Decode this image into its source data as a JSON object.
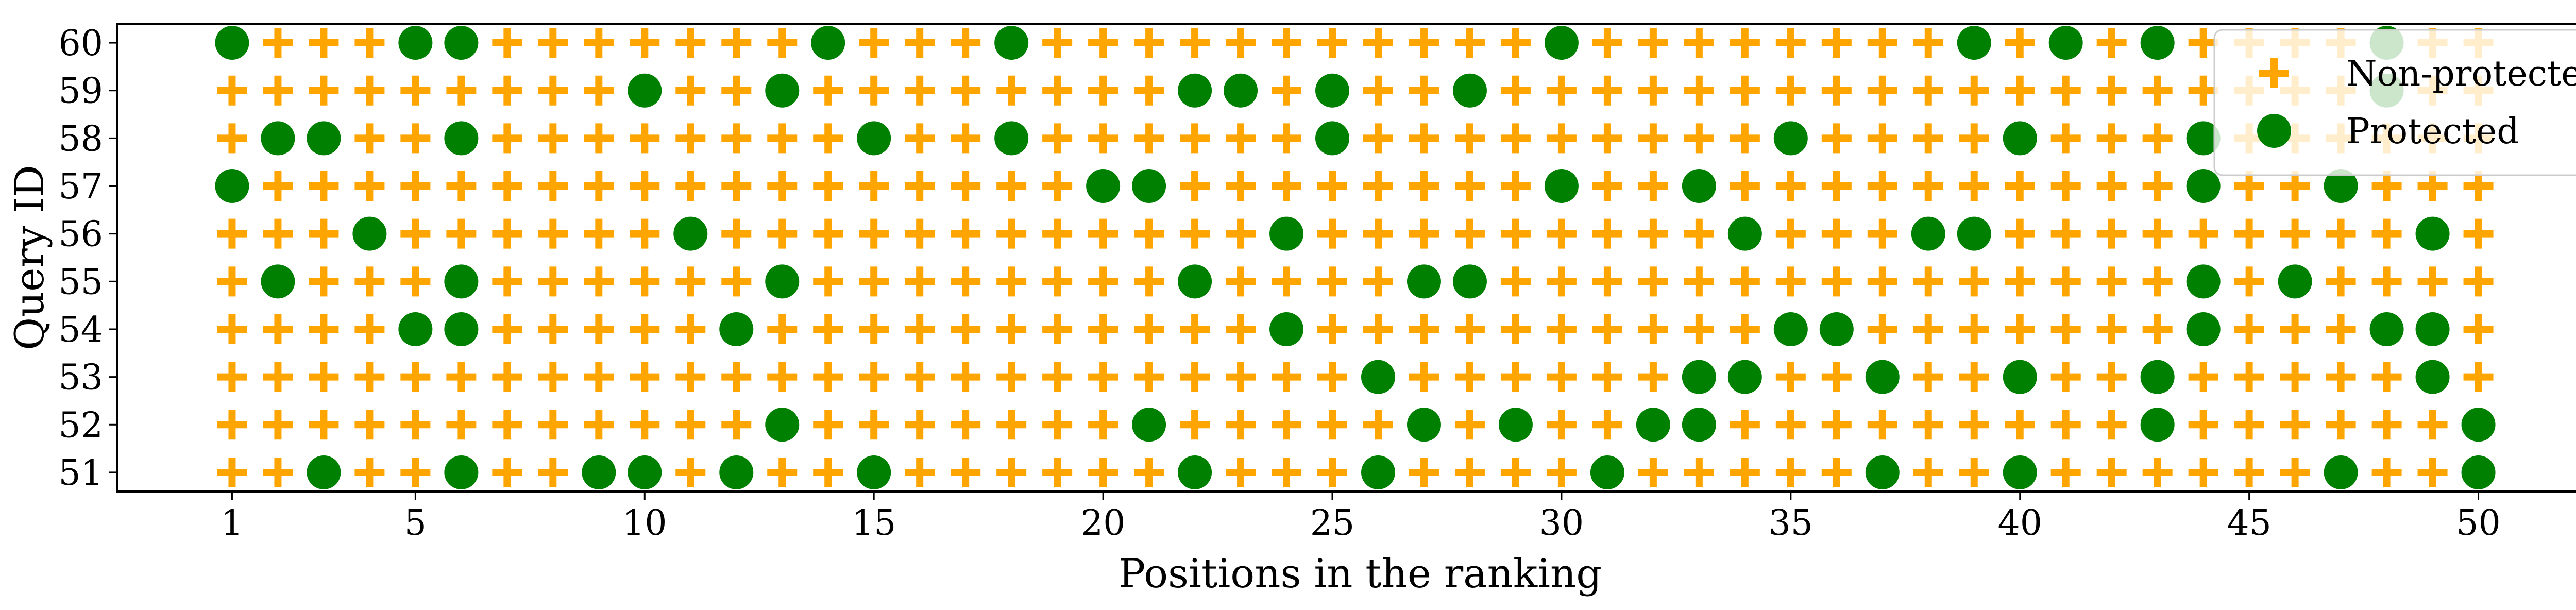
{
  "chart_data": {
    "type": "scatter",
    "xlabel": "Positions in the ranking",
    "ylabel": "Query ID",
    "x_ticks": [
      1,
      5,
      10,
      15,
      20,
      25,
      30,
      35,
      40,
      45,
      50
    ],
    "y_ticks": [
      51,
      52,
      53,
      54,
      55,
      56,
      57,
      58,
      59,
      60
    ],
    "xlim": [
      -1.5,
      52.5
    ],
    "ylim": [
      50.6,
      60.4
    ],
    "positions": 50,
    "grid": false,
    "legend": {
      "placement": "top-right",
      "entries": [
        "Non-protected",
        "Protected"
      ]
    },
    "series": [
      {
        "name": "Non-protected",
        "marker": "plus",
        "color": "#FFA500",
        "points": "every position of every query not listed under Protected"
      },
      {
        "name": "Protected",
        "marker": "circle",
        "color": "#008000"
      }
    ],
    "protected": {
      "60": [
        1,
        5,
        6,
        14,
        18,
        30,
        39,
        41,
        43,
        48
      ],
      "59": [
        10,
        13,
        22,
        23,
        25,
        28,
        48
      ],
      "58": [
        2,
        3,
        6,
        15,
        18,
        25,
        35,
        40,
        44
      ],
      "57": [
        1,
        20,
        21,
        30,
        33,
        44,
        47
      ],
      "56": [
        4,
        11,
        24,
        34,
        38,
        39,
        49
      ],
      "55": [
        2,
        6,
        13,
        22,
        27,
        28,
        44,
        46
      ],
      "54": [
        5,
        6,
        12,
        24,
        35,
        36,
        44,
        48,
        49
      ],
      "53": [
        26,
        33,
        34,
        37,
        40,
        43,
        49
      ],
      "52": [
        13,
        21,
        27,
        29,
        32,
        33,
        43,
        50
      ],
      "51": [
        3,
        6,
        9,
        10,
        12,
        15,
        22,
        26,
        31,
        37,
        40,
        47,
        50
      ]
    }
  }
}
